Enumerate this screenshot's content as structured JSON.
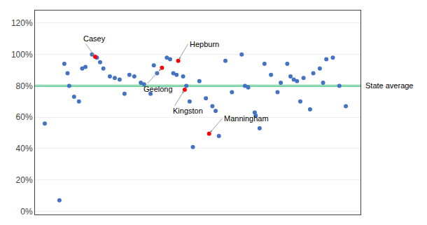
{
  "chart_data": {
    "type": "scatter",
    "title": "",
    "xlim": [
      0.0,
      1.0
    ],
    "xticks": [],
    "ylim": [
      -0.02,
      1.28
    ],
    "yticks": [
      {
        "value": 0.0,
        "label": "0%"
      },
      {
        "value": 0.2,
        "label": "20%"
      },
      {
        "value": 0.4,
        "label": "40%"
      },
      {
        "value": 0.6,
        "label": "60%"
      },
      {
        "value": 0.8,
        "label": "80%"
      },
      {
        "value": 1.0,
        "label": "100%"
      },
      {
        "value": 1.2,
        "label": "120%"
      }
    ],
    "grid": true,
    "tick_labels": "y",
    "series": [
      {
        "color": "#4472C4",
        "x": [
          0.03,
          0.075,
          0.09,
          0.1,
          0.105,
          0.12,
          0.135,
          0.145,
          0.155,
          0.175,
          0.19,
          0.2,
          0.21,
          0.23,
          0.245,
          0.26,
          0.275,
          0.29,
          0.305,
          0.325,
          0.335,
          0.355,
          0.365,
          0.375,
          0.405,
          0.415,
          0.425,
          0.435,
          0.455,
          0.465,
          0.475,
          0.485,
          0.505,
          0.525,
          0.545,
          0.555,
          0.565,
          0.585,
          0.605,
          0.635,
          0.645,
          0.655,
          0.675,
          0.678,
          0.69,
          0.705,
          0.725,
          0.745,
          0.755,
          0.775,
          0.785,
          0.795,
          0.805,
          0.815,
          0.825,
          0.845,
          0.855,
          0.875,
          0.885,
          0.895,
          0.915,
          0.935,
          0.955
        ],
        "values": [
          0.56,
          0.07,
          0.94,
          0.88,
          0.8,
          0.73,
          0.7,
          0.91,
          0.92,
          1.0,
          0.98,
          0.95,
          0.91,
          0.86,
          0.85,
          0.84,
          0.75,
          0.87,
          0.86,
          0.82,
          0.81,
          0.75,
          0.93,
          0.88,
          0.98,
          0.97,
          0.88,
          0.87,
          0.86,
          0.8,
          0.7,
          0.41,
          0.83,
          0.72,
          0.67,
          0.64,
          0.48,
          0.96,
          0.76,
          1.0,
          0.8,
          0.79,
          0.63,
          0.61,
          0.53,
          0.94,
          0.87,
          0.76,
          0.82,
          0.94,
          0.86,
          0.84,
          0.83,
          0.7,
          0.85,
          0.65,
          0.88,
          0.91,
          0.82,
          0.97,
          0.98,
          0.8,
          0.67
        ]
      },
      {
        "color": "#FF0000",
        "x": [
          0.185,
          0.44,
          0.39,
          0.46,
          0.535
        ],
        "values": [
          0.985,
          0.96,
          0.915,
          0.775,
          0.495
        ],
        "labels": [
          "Casey",
          "Hepburn",
          "Geelong",
          "Kingston",
          "Manningham"
        ]
      }
    ],
    "reference_line": {
      "value": 0.8,
      "label": "State average",
      "color": "#00B050"
    }
  }
}
